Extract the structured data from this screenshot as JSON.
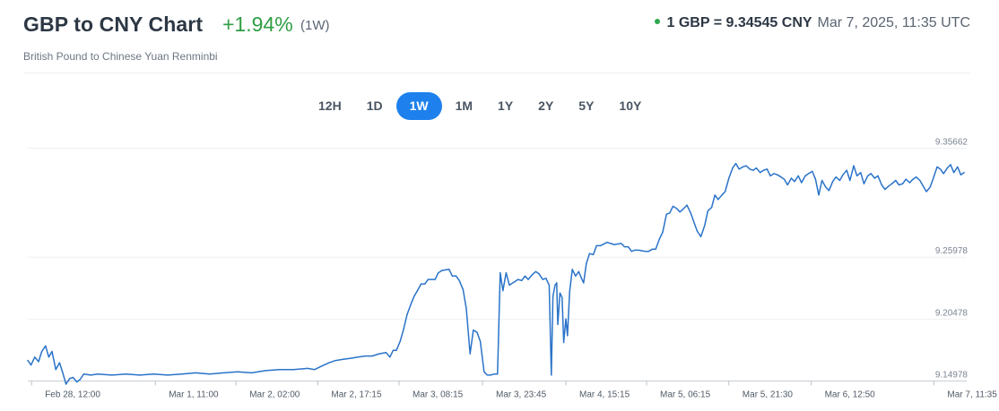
{
  "header": {
    "title": "GBP to CNY Chart",
    "change": "+1.94%",
    "period": "(1W)",
    "rate": "1 GBP = 9.34545 CNY",
    "timestamp": "Mar 7, 2025, 11:35 UTC",
    "subtitle": "British Pound to Chinese Yuan Renminbi"
  },
  "colors": {
    "accent": "#1e80ec",
    "positive": "#2f9e44",
    "live_dot": "#2fa84f",
    "line": "#2a73c9"
  },
  "ranges": [
    {
      "label": "12H",
      "active": false
    },
    {
      "label": "1D",
      "active": false
    },
    {
      "label": "1W",
      "active": true
    },
    {
      "label": "1M",
      "active": false
    },
    {
      "label": "1Y",
      "active": false
    },
    {
      "label": "2Y",
      "active": false
    },
    {
      "label": "5Y",
      "active": false
    },
    {
      "label": "10Y",
      "active": false
    }
  ],
  "chart_data": {
    "type": "line",
    "title": "",
    "xlabel": "",
    "ylabel": "",
    "grid": true,
    "ylim": [
      9.14978,
      9.35662
    ],
    "yticks": [
      {
        "value": 9.35662,
        "label": "9.35662"
      },
      {
        "value": 9.25978,
        "label": "9.25978"
      },
      {
        "value": 9.20478,
        "label": "9.20478"
      },
      {
        "value": 9.14978,
        "label": "9.14978"
      }
    ],
    "xticks": [
      {
        "x": 0.7,
        "label": "Feb 28, 12:00"
      },
      {
        "x": 23.7,
        "label": "Mar 1, 11:00"
      },
      {
        "x": 38.7,
        "label": "Mar 2, 02:00"
      },
      {
        "x": 53.9,
        "label": "Mar 2, 17:15"
      },
      {
        "x": 69.0,
        "label": "Mar 3, 08:15"
      },
      {
        "x": 84.5,
        "label": "Mar 3, 23:45"
      },
      {
        "x": 100.0,
        "label": "Mar 4, 15:15"
      },
      {
        "x": 115.0,
        "label": "Mar 5, 06:15"
      },
      {
        "x": 130.3,
        "label": "Mar 5, 21:30"
      },
      {
        "x": 145.6,
        "label": "Mar 6, 12:50"
      },
      {
        "x": 168.4,
        "label": "Mar 7, 11:35"
      }
    ],
    "x_unit": "hours since Feb 28, 11:18",
    "series": [
      {
        "values": [
          [
            0.0,
            9.168
          ],
          [
            0.6,
            9.164
          ],
          [
            1.3,
            9.171
          ],
          [
            2.0,
            9.167
          ],
          [
            2.6,
            9.176
          ],
          [
            3.3,
            9.181
          ],
          [
            3.9,
            9.171
          ],
          [
            4.5,
            9.176
          ],
          [
            5.2,
            9.16
          ],
          [
            5.9,
            9.166
          ],
          [
            6.5,
            9.157
          ],
          [
            7.1,
            9.147
          ],
          [
            7.8,
            9.152
          ],
          [
            8.4,
            9.153
          ],
          [
            9.1,
            9.149
          ],
          [
            9.7,
            9.151
          ],
          [
            10.4,
            9.156
          ],
          [
            11.7,
            9.155
          ],
          [
            13.0,
            9.156
          ],
          [
            15.6,
            9.155
          ],
          [
            18.2,
            9.156
          ],
          [
            20.8,
            9.155
          ],
          [
            23.4,
            9.156
          ],
          [
            26.0,
            9.155
          ],
          [
            28.6,
            9.156
          ],
          [
            31.2,
            9.157
          ],
          [
            33.8,
            9.156
          ],
          [
            36.4,
            9.157
          ],
          [
            39.0,
            9.158
          ],
          [
            41.6,
            9.157
          ],
          [
            44.2,
            9.159
          ],
          [
            46.8,
            9.16
          ],
          [
            49.4,
            9.16
          ],
          [
            52.0,
            9.161
          ],
          [
            53.3,
            9.16
          ],
          [
            54.6,
            9.163
          ],
          [
            56.0,
            9.166
          ],
          [
            57.2,
            9.168
          ],
          [
            58.6,
            9.169
          ],
          [
            60.0,
            9.17
          ],
          [
            61.4,
            9.171
          ],
          [
            62.7,
            9.172
          ],
          [
            64.0,
            9.172
          ],
          [
            65.3,
            9.174
          ],
          [
            66.6,
            9.175
          ],
          [
            67.3,
            9.171
          ],
          [
            67.9,
            9.177
          ],
          [
            68.5,
            9.177
          ],
          [
            69.2,
            9.185
          ],
          [
            69.8,
            9.195
          ],
          [
            70.5,
            9.209
          ],
          [
            71.2,
            9.218
          ],
          [
            71.8,
            9.225
          ],
          [
            72.4,
            9.23
          ],
          [
            73.1,
            9.236
          ],
          [
            73.8,
            9.236
          ],
          [
            74.4,
            9.24
          ],
          [
            75.1,
            9.24
          ],
          [
            75.7,
            9.24
          ],
          [
            76.3,
            9.246
          ],
          [
            77.0,
            9.248
          ],
          [
            78.3,
            9.249
          ],
          [
            78.9,
            9.243
          ],
          [
            79.6,
            9.243
          ],
          [
            80.2,
            9.239
          ],
          [
            80.9,
            9.231
          ],
          [
            81.5,
            9.214
          ],
          [
            82.2,
            9.174
          ],
          [
            82.8,
            9.195
          ],
          [
            83.5,
            9.193
          ],
          [
            84.1,
            9.185
          ],
          [
            84.8,
            9.158
          ],
          [
            85.4,
            9.155
          ],
          [
            86.0,
            9.155
          ],
          [
            86.7,
            9.156
          ],
          [
            87.3,
            9.156
          ],
          [
            87.8,
            9.246
          ],
          [
            88.3,
            9.23
          ],
          [
            88.9,
            9.246
          ],
          [
            89.5,
            9.235
          ],
          [
            90.5,
            9.238
          ],
          [
            91.1,
            9.24
          ],
          [
            91.8,
            9.239
          ],
          [
            92.4,
            9.243
          ],
          [
            93.0,
            9.24
          ],
          [
            93.7,
            9.244
          ],
          [
            94.4,
            9.247
          ],
          [
            95.0,
            9.245
          ],
          [
            95.7,
            9.24
          ],
          [
            96.3,
            9.241
          ],
          [
            96.9,
            9.235
          ],
          [
            97.3,
            9.155
          ],
          [
            97.6,
            9.225
          ],
          [
            98.0,
            9.235
          ],
          [
            98.3,
            9.237
          ],
          [
            98.5,
            9.2
          ],
          [
            98.9,
            9.228
          ],
          [
            99.3,
            9.224
          ],
          [
            99.6,
            9.184
          ],
          [
            100.0,
            9.205
          ],
          [
            100.3,
            9.19
          ],
          [
            100.7,
            9.229
          ],
          [
            101.2,
            9.249
          ],
          [
            101.8,
            9.243
          ],
          [
            102.4,
            9.247
          ],
          [
            102.9,
            9.241
          ],
          [
            103.3,
            9.237
          ],
          [
            103.8,
            9.254
          ],
          [
            104.4,
            9.263
          ],
          [
            105.1,
            9.262
          ],
          [
            105.7,
            9.27
          ],
          [
            106.4,
            9.27
          ],
          [
            107.7,
            9.273
          ],
          [
            108.3,
            9.272
          ],
          [
            109.0,
            9.271
          ],
          [
            110.3,
            9.272
          ],
          [
            110.9,
            9.269
          ],
          [
            111.6,
            9.269
          ],
          [
            112.2,
            9.265
          ],
          [
            112.8,
            9.266
          ],
          [
            113.5,
            9.266
          ],
          [
            114.8,
            9.265
          ],
          [
            115.4,
            9.265
          ],
          [
            116.1,
            9.267
          ],
          [
            116.7,
            9.267
          ],
          [
            117.4,
            9.276
          ],
          [
            118.0,
            9.282
          ],
          [
            118.7,
            9.298
          ],
          [
            119.3,
            9.299
          ],
          [
            119.9,
            9.305
          ],
          [
            120.6,
            9.303
          ],
          [
            121.2,
            9.3
          ],
          [
            121.9,
            9.303
          ],
          [
            122.5,
            9.306
          ],
          [
            123.2,
            9.299
          ],
          [
            123.8,
            9.291
          ],
          [
            124.4,
            9.283
          ],
          [
            125.1,
            9.278
          ],
          [
            125.8,
            9.288
          ],
          [
            126.4,
            9.301
          ],
          [
            127.1,
            9.304
          ],
          [
            127.7,
            9.315
          ],
          [
            128.3,
            9.311
          ],
          [
            129.0,
            9.315
          ],
          [
            129.6,
            9.318
          ],
          [
            130.3,
            9.33
          ],
          [
            131.0,
            9.339
          ],
          [
            131.6,
            9.343
          ],
          [
            132.2,
            9.338
          ],
          [
            132.9,
            9.34
          ],
          [
            133.5,
            9.341
          ],
          [
            134.2,
            9.338
          ],
          [
            134.8,
            9.337
          ],
          [
            135.4,
            9.339
          ],
          [
            136.1,
            9.335
          ],
          [
            136.7,
            9.337
          ],
          [
            137.4,
            9.338
          ],
          [
            138.0,
            9.332
          ],
          [
            138.7,
            9.334
          ],
          [
            139.3,
            9.333
          ],
          [
            140.0,
            9.331
          ],
          [
            140.6,
            9.329
          ],
          [
            141.2,
            9.324
          ],
          [
            141.9,
            9.33
          ],
          [
            142.5,
            9.327
          ],
          [
            143.2,
            9.332
          ],
          [
            143.8,
            9.326
          ],
          [
            144.5,
            9.332
          ],
          [
            145.1,
            9.334
          ],
          [
            145.8,
            9.336
          ],
          [
            146.4,
            9.329
          ],
          [
            147.0,
            9.315
          ],
          [
            147.6,
            9.328
          ],
          [
            148.3,
            9.322
          ],
          [
            148.9,
            9.319
          ],
          [
            149.6,
            9.327
          ],
          [
            150.2,
            9.331
          ],
          [
            150.9,
            9.328
          ],
          [
            151.5,
            9.333
          ],
          [
            152.2,
            9.337
          ],
          [
            152.8,
            9.328
          ],
          [
            153.5,
            9.341
          ],
          [
            154.1,
            9.332
          ],
          [
            154.8,
            9.335
          ],
          [
            155.4,
            9.325
          ],
          [
            156.1,
            9.332
          ],
          [
            156.7,
            9.334
          ],
          [
            157.4,
            9.33
          ],
          [
            158.0,
            9.332
          ],
          [
            158.7,
            9.324
          ],
          [
            159.3,
            9.32
          ],
          [
            160.0,
            9.323
          ],
          [
            160.6,
            9.325
          ],
          [
            161.3,
            9.328
          ],
          [
            161.9,
            9.324
          ],
          [
            162.6,
            9.325
          ],
          [
            163.2,
            9.329
          ],
          [
            163.9,
            9.326
          ],
          [
            164.5,
            9.329
          ],
          [
            165.1,
            9.331
          ],
          [
            165.8,
            9.328
          ],
          [
            166.4,
            9.323
          ],
          [
            167.0,
            9.318
          ],
          [
            167.7,
            9.322
          ],
          [
            168.3,
            9.33
          ],
          [
            169.0,
            9.34
          ],
          [
            169.6,
            9.338
          ],
          [
            170.2,
            9.334
          ],
          [
            170.9,
            9.339
          ],
          [
            171.5,
            9.342
          ],
          [
            172.1,
            9.335
          ],
          [
            172.8,
            9.34
          ],
          [
            173.4,
            9.333
          ],
          [
            174.0,
            9.335
          ]
        ]
      }
    ]
  }
}
